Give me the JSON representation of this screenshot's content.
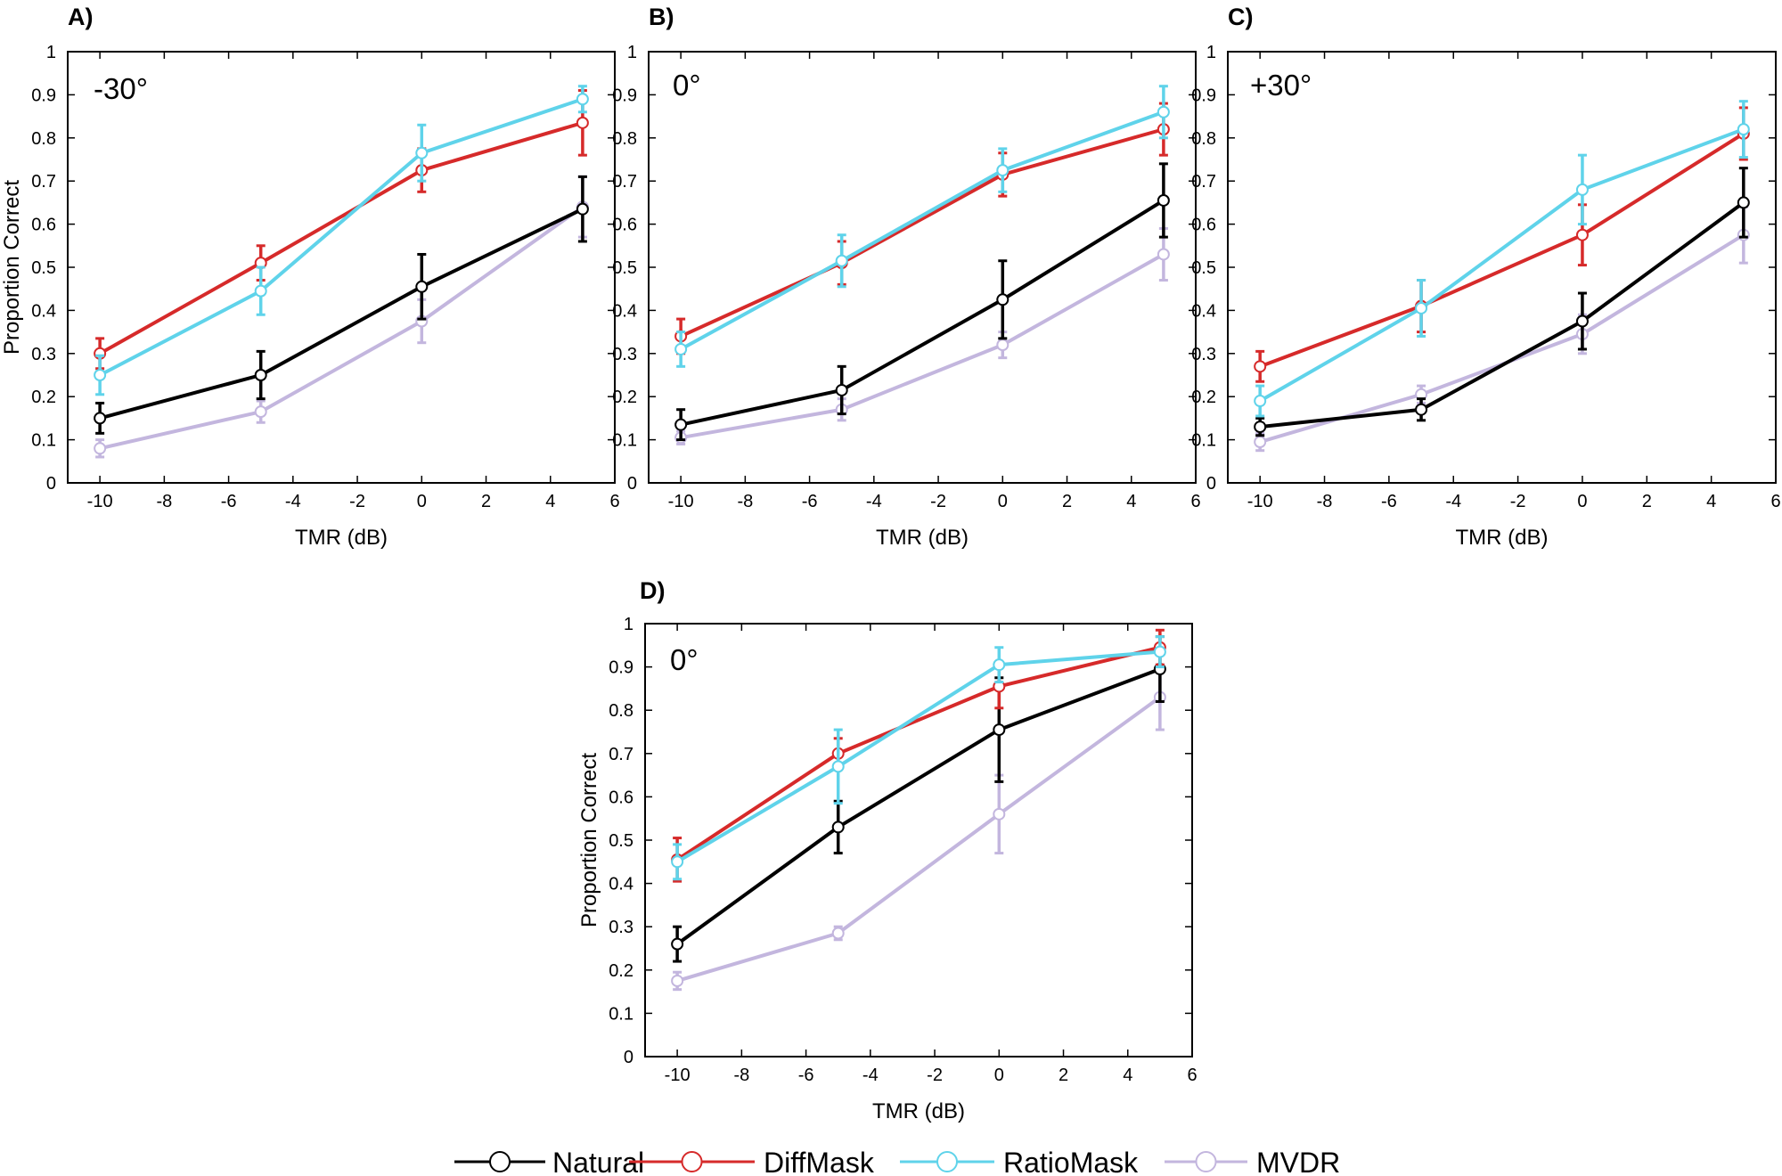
{
  "colors": {
    "Natural": "#000000",
    "DiffMask": "#d62a2a",
    "RatioMask": "#5fd3ea",
    "MVDR": "#c3b6de"
  },
  "legend": [
    "Natural",
    "DiffMask",
    "RatioMask",
    "MVDR"
  ],
  "chart_data": [
    {
      "type": "line",
      "panel_label": "A)",
      "annotation": "-30°",
      "xlabel": "TMR (dB)",
      "ylabel": "Proportion Correct",
      "xlim": [
        -11,
        6
      ],
      "ylim": [
        0,
        1
      ],
      "xticks": [
        -10,
        -8,
        -6,
        -4,
        -2,
        0,
        2,
        4,
        6
      ],
      "yticks": [
        0,
        0.1,
        0.2,
        0.3,
        0.4,
        0.5,
        0.6,
        0.7,
        0.8,
        0.9,
        1
      ],
      "x": [
        -10,
        -5,
        0,
        5
      ],
      "series": [
        {
          "name": "Natural",
          "values": [
            0.15,
            0.25,
            0.455,
            0.635
          ],
          "errors": [
            0.035,
            0.055,
            0.075,
            0.075
          ]
        },
        {
          "name": "DiffMask",
          "values": [
            0.3,
            0.51,
            0.725,
            0.835
          ],
          "errors": [
            0.035,
            0.04,
            0.05,
            0.075
          ]
        },
        {
          "name": "RatioMask",
          "values": [
            0.25,
            0.445,
            0.765,
            0.89
          ],
          "errors": [
            0.045,
            0.055,
            0.065,
            0.03
          ]
        },
        {
          "name": "MVDR",
          "values": [
            0.08,
            0.165,
            0.375,
            0.64
          ],
          "errors": [
            0.02,
            0.025,
            0.05,
            0.07
          ]
        }
      ]
    },
    {
      "type": "line",
      "panel_label": "B)",
      "annotation": "0°",
      "xlabel": "TMR (dB)",
      "ylabel": "",
      "xlim": [
        -11,
        6
      ],
      "ylim": [
        0,
        1
      ],
      "xticks": [
        -10,
        -8,
        -6,
        -4,
        -2,
        0,
        2,
        4,
        6
      ],
      "yticks": [
        0,
        0.1,
        0.2,
        0.3,
        0.4,
        0.5,
        0.6,
        0.7,
        0.8,
        0.9,
        1
      ],
      "x": [
        -10,
        -5,
        0,
        5
      ],
      "series": [
        {
          "name": "Natural",
          "values": [
            0.135,
            0.215,
            0.425,
            0.655
          ],
          "errors": [
            0.035,
            0.055,
            0.09,
            0.085
          ]
        },
        {
          "name": "DiffMask",
          "values": [
            0.34,
            0.51,
            0.715,
            0.82
          ],
          "errors": [
            0.04,
            0.05,
            0.05,
            0.06
          ]
        },
        {
          "name": "RatioMask",
          "values": [
            0.31,
            0.515,
            0.725,
            0.86
          ],
          "errors": [
            0.04,
            0.06,
            0.05,
            0.06
          ]
        },
        {
          "name": "MVDR",
          "values": [
            0.105,
            0.17,
            0.32,
            0.53
          ],
          "errors": [
            0.015,
            0.025,
            0.03,
            0.06
          ]
        }
      ]
    },
    {
      "type": "line",
      "panel_label": "C)",
      "annotation": "+30°",
      "xlabel": "TMR (dB)",
      "ylabel": "",
      "xlim": [
        -11,
        6
      ],
      "ylim": [
        0,
        1
      ],
      "xticks": [
        -10,
        -8,
        -6,
        -4,
        -2,
        0,
        2,
        4,
        6
      ],
      "yticks": [
        0,
        0.1,
        0.2,
        0.3,
        0.4,
        0.5,
        0.6,
        0.7,
        0.8,
        0.9,
        1
      ],
      "x": [
        -10,
        -5,
        0,
        5
      ],
      "series": [
        {
          "name": "Natural",
          "values": [
            0.13,
            0.17,
            0.375,
            0.65
          ],
          "errors": [
            0.02,
            0.025,
            0.065,
            0.08
          ]
        },
        {
          "name": "DiffMask",
          "values": [
            0.27,
            0.41,
            0.575,
            0.81
          ],
          "errors": [
            0.035,
            0.06,
            0.07,
            0.06
          ]
        },
        {
          "name": "RatioMask",
          "values": [
            0.19,
            0.405,
            0.68,
            0.82
          ],
          "errors": [
            0.035,
            0.065,
            0.08,
            0.065
          ]
        },
        {
          "name": "MVDR",
          "values": [
            0.095,
            0.205,
            0.345,
            0.575
          ],
          "errors": [
            0.02,
            0.02,
            0.045,
            0.065
          ]
        }
      ]
    },
    {
      "type": "line",
      "panel_label": "D)",
      "annotation": "0°",
      "xlabel": "TMR (dB)",
      "ylabel": "Proportion Correct",
      "xlim": [
        -11,
        6
      ],
      "ylim": [
        0,
        1
      ],
      "xticks": [
        -10,
        -8,
        -6,
        -4,
        -2,
        0,
        2,
        4,
        6
      ],
      "yticks": [
        0,
        0.1,
        0.2,
        0.3,
        0.4,
        0.5,
        0.6,
        0.7,
        0.8,
        0.9,
        1
      ],
      "x": [
        -10,
        -5,
        0,
        5
      ],
      "series": [
        {
          "name": "Natural",
          "values": [
            0.26,
            0.53,
            0.755,
            0.895
          ],
          "errors": [
            0.04,
            0.06,
            0.12,
            0.075
          ]
        },
        {
          "name": "DiffMask",
          "values": [
            0.455,
            0.7,
            0.855,
            0.945
          ],
          "errors": [
            0.05,
            0.035,
            0.05,
            0.04
          ]
        },
        {
          "name": "RatioMask",
          "values": [
            0.45,
            0.67,
            0.905,
            0.935
          ],
          "errors": [
            0.04,
            0.085,
            0.04,
            0.035
          ]
        },
        {
          "name": "MVDR",
          "values": [
            0.175,
            0.285,
            0.56,
            0.83
          ],
          "errors": [
            0.02,
            0.015,
            0.09,
            0.075
          ]
        }
      ]
    }
  ]
}
